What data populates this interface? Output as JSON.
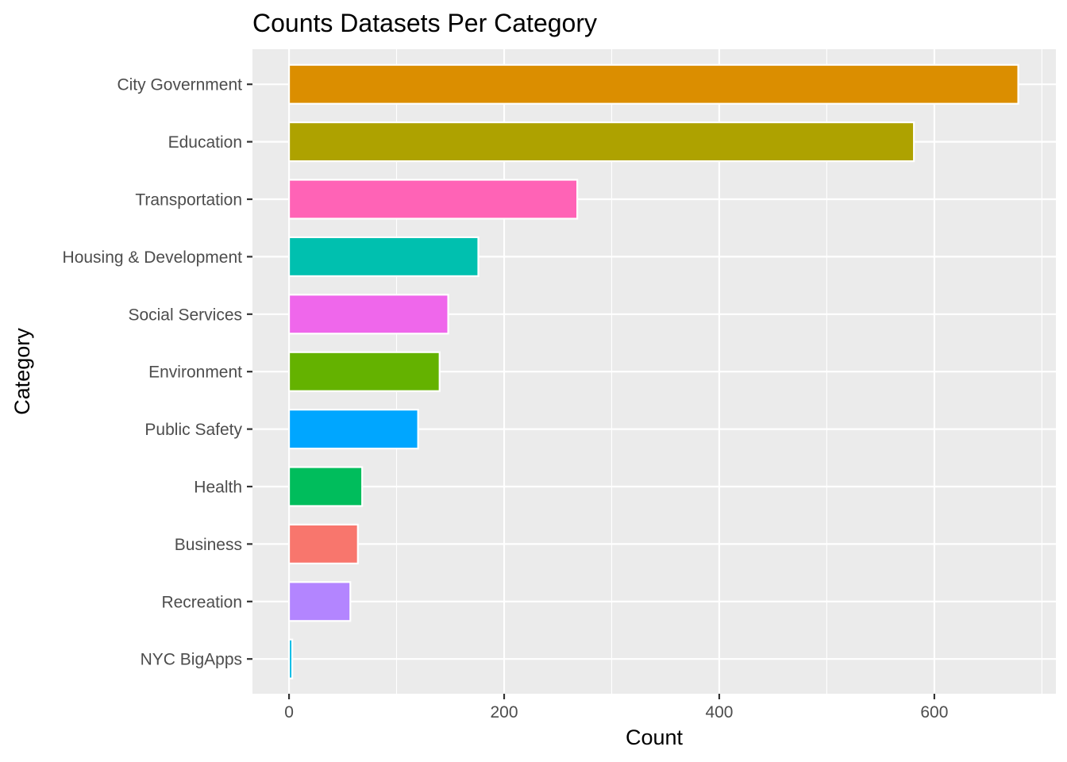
{
  "chart_data": {
    "type": "bar",
    "orientation": "horizontal",
    "title": "Counts Datasets Per Category",
    "xlabel": "Count",
    "ylabel": "Category",
    "xlim": [
      -34,
      713
    ],
    "x_ticks": [
      0,
      200,
      400,
      600
    ],
    "x_minor_ticks": [
      100,
      300,
      500,
      700
    ],
    "grid": true,
    "legend": "none",
    "categories": [
      "City Government",
      "Education",
      "Transportation",
      "Housing & Development",
      "Social Services",
      "Environment",
      "Public Safety",
      "Health",
      "Business",
      "Recreation",
      "NYC BigApps"
    ],
    "values": [
      678,
      581,
      268,
      176,
      148,
      140,
      120,
      68,
      64,
      57,
      3
    ],
    "colors": [
      "#DB8E00",
      "#AEA200",
      "#FF63B6",
      "#00C0AF",
      "#EF67EB",
      "#64B200",
      "#00A6FF",
      "#00BD5C",
      "#F8766D",
      "#B385FF",
      "#00B8E5"
    ]
  }
}
